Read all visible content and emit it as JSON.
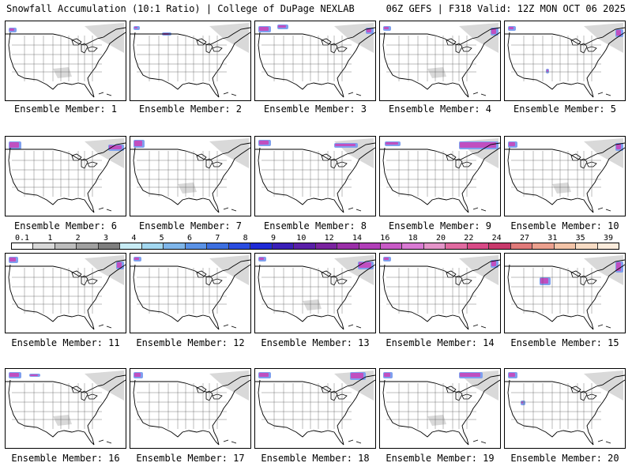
{
  "header": {
    "left": "Snowfall Accumulation (10:1 Ratio) | College of DuPage NEXLAB",
    "right": "06Z GEFS | F318 Valid: 12Z MON OCT 06 2025"
  },
  "members": [
    {
      "label": "Ensemble Member: 1"
    },
    {
      "label": "Ensemble Member: 2"
    },
    {
      "label": "Ensemble Member: 3"
    },
    {
      "label": "Ensemble Member: 4"
    },
    {
      "label": "Ensemble Member: 5"
    },
    {
      "label": "Ensemble Member: 6"
    },
    {
      "label": "Ensemble Member: 7"
    },
    {
      "label": "Ensemble Member: 8"
    },
    {
      "label": "Ensemble Member: 9"
    },
    {
      "label": "Ensemble Member: 10"
    },
    {
      "label": "Ensemble Member: 11"
    },
    {
      "label": "Ensemble Member: 12"
    },
    {
      "label": "Ensemble Member: 13"
    },
    {
      "label": "Ensemble Member: 14"
    },
    {
      "label": "Ensemble Member: 15"
    },
    {
      "label": "Ensemble Member: 16"
    },
    {
      "label": "Ensemble Member: 17"
    },
    {
      "label": "Ensemble Member: 18"
    },
    {
      "label": "Ensemble Member: 19"
    },
    {
      "label": "Ensemble Member: 20"
    }
  ],
  "colorbar": {
    "labels": [
      "0.1",
      "1",
      "2",
      "3",
      "4",
      "5",
      "6",
      "7",
      "8",
      "9",
      "10",
      "12",
      "14",
      "16",
      "18",
      "20",
      "22",
      "24",
      "27",
      "31",
      "35",
      "39"
    ],
    "colors": [
      "#ffffff",
      "#d9d9d9",
      "#bdbdbd",
      "#a0a0a0",
      "#7f7f7f",
      "#c8ecf5",
      "#a3d8f0",
      "#7fb6ea",
      "#5a92e6",
      "#3d6fe0",
      "#2a4de0",
      "#1f2bd6",
      "#3a1fb8",
      "#5a1fa8",
      "#7a239f",
      "#9a2fa8",
      "#b13fb8",
      "#c85ac6",
      "#d97ad3",
      "#e494c9",
      "#e06aa0",
      "#d84a86",
      "#c93a6c",
      "#e07a7a",
      "#eba08e",
      "#f3c4a8",
      "#f8dcc4",
      "#fcecdc"
    ]
  }
}
